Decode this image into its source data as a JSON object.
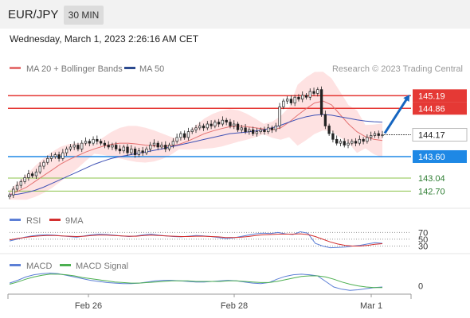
{
  "header": {
    "symbol": "EUR/JPY",
    "timeframe": "30 MIN",
    "datetime": "Wednesday, March 1, 2023 2:26:16 AM CET"
  },
  "legend": {
    "ma20_label": "MA 20 + Bollinger Bands",
    "ma50_label": "MA 50",
    "credit": "Research © 2023 Trading Central"
  },
  "colors": {
    "up": "#2e7d32",
    "down": "#c62828",
    "ma20": "#e57373",
    "ma50": "#5c6bc0",
    "band_fill": "#fdd8d8",
    "resistance": "#e53935",
    "support": "#1e88e5",
    "target": "#8bc34a",
    "arrow": "#1565c0",
    "rsi": "#5c7fd6",
    "nine_ma": "#d32f2f",
    "macd": "#5c7fd6",
    "macd_signal": "#4caf50",
    "last_price_bg": "#ffffff"
  },
  "chart_data": [
    {
      "type": "candlestick",
      "title": "EUR/JPY 30 MIN",
      "x_ticks": [
        "Feb 26",
        "Feb 28",
        "Mar 1"
      ],
      "ylim": [
        142.5,
        145.55
      ],
      "levels": [
        {
          "value": 145.19,
          "label": "145.19",
          "kind": "resistance"
        },
        {
          "value": 144.86,
          "label": "144.86",
          "kind": "resistance"
        },
        {
          "value": 144.17,
          "label": "144.17",
          "kind": "last"
        },
        {
          "value": 143.6,
          "label": "143.60",
          "kind": "support"
        },
        {
          "value": 143.04,
          "label": "143.04",
          "kind": "target"
        },
        {
          "value": 142.7,
          "label": "142.70",
          "kind": "target"
        }
      ],
      "candles_close": [
        142.6,
        142.75,
        142.85,
        142.95,
        143.05,
        143.15,
        143.1,
        143.2,
        143.35,
        143.45,
        143.55,
        143.6,
        143.65,
        143.55,
        143.7,
        143.8,
        143.85,
        143.9,
        143.8,
        143.95,
        144.0,
        143.95,
        144.05,
        144.0,
        143.95,
        143.9,
        143.85,
        143.9,
        143.8,
        143.75,
        143.85,
        143.7,
        143.8,
        143.65,
        143.75,
        143.7,
        143.8,
        143.9,
        143.95,
        143.85,
        143.9,
        143.8,
        143.9,
        144.0,
        144.1,
        144.2,
        144.1,
        144.25,
        144.3,
        144.35,
        144.4,
        144.35,
        144.45,
        144.4,
        144.5,
        144.45,
        144.55,
        144.5,
        144.4,
        144.45,
        144.3,
        144.35,
        144.25,
        144.3,
        144.2,
        144.25,
        144.3,
        144.25,
        144.35,
        144.3,
        144.4,
        144.9,
        145.05,
        145.1,
        145.0,
        145.15,
        145.1,
        145.2,
        145.15,
        145.3,
        145.25,
        145.35,
        144.7,
        144.4,
        144.2,
        144.05,
        143.95,
        144.0,
        143.9,
        143.95,
        144.0,
        143.95,
        144.05,
        144.0,
        144.1,
        144.15,
        144.2,
        144.15,
        144.17
      ],
      "ma20": [
        142.6,
        142.7,
        142.8,
        142.95,
        143.1,
        143.25,
        143.4,
        143.52,
        143.62,
        143.72,
        143.8,
        143.87,
        143.92,
        143.95,
        143.95,
        143.93,
        143.9,
        143.88,
        143.87,
        143.88,
        143.92,
        144.0,
        144.1,
        144.2,
        144.27,
        144.33,
        144.38,
        144.4,
        144.38,
        144.35,
        144.32,
        144.3,
        144.35,
        144.5,
        144.68,
        144.85,
        145.0,
        145.05,
        144.95,
        144.7,
        144.45,
        144.25,
        144.12,
        144.05,
        144.02
      ],
      "ma50": [
        142.6,
        142.62,
        142.66,
        142.72,
        142.8,
        142.9,
        143.0,
        143.1,
        143.2,
        143.3,
        143.4,
        143.48,
        143.55,
        143.6,
        143.64,
        143.68,
        143.72,
        143.76,
        143.8,
        143.85,
        143.9,
        143.95,
        144.0,
        144.05,
        144.1,
        144.15,
        144.2,
        144.22,
        144.24,
        144.27,
        144.3,
        144.35,
        144.42,
        144.5,
        144.58,
        144.64,
        144.68,
        144.7,
        144.68,
        144.64,
        144.6,
        144.56,
        144.53,
        144.51,
        144.5
      ],
      "projection": {
        "from": 144.17,
        "to": 145.19
      }
    },
    {
      "type": "line",
      "title": "RSI",
      "series": [
        {
          "name": "RSI"
        },
        {
          "name": "9MA"
        }
      ],
      "y_ticks": [
        70,
        50,
        30
      ],
      "rsi": [
        45,
        50,
        56,
        60,
        62,
        63,
        62,
        60,
        58,
        56,
        60,
        63,
        65,
        64,
        62,
        60,
        58,
        60,
        63,
        65,
        62,
        60,
        58,
        57,
        59,
        61,
        60,
        58,
        55,
        52,
        54,
        58,
        62,
        66,
        68,
        67,
        70,
        66,
        64,
        72,
        68,
        38,
        30,
        25,
        26,
        27,
        30,
        32,
        36,
        40,
        38
      ],
      "nine_ma": [
        48,
        52,
        55,
        58,
        60,
        61,
        61,
        60,
        59,
        58,
        59,
        61,
        62,
        62,
        61,
        60,
        59,
        59,
        61,
        62,
        61,
        60,
        59,
        58,
        58,
        59,
        59,
        58,
        57,
        55,
        55,
        56,
        58,
        61,
        63,
        64,
        65,
        65,
        65,
        66,
        64,
        58,
        50,
        42,
        36,
        32,
        30,
        30,
        32,
        35,
        37
      ]
    },
    {
      "type": "line",
      "title": "MACD",
      "series": [
        {
          "name": "MACD"
        },
        {
          "name": "MACD Signal"
        }
      ],
      "y_ticks": [
        0
      ],
      "macd": [
        0.05,
        0.1,
        0.16,
        0.2,
        0.22,
        0.23,
        0.22,
        0.19,
        0.16,
        0.13,
        0.1,
        0.08,
        0.06,
        0.05,
        0.04,
        0.04,
        0.05,
        0.07,
        0.09,
        0.1,
        0.1,
        0.09,
        0.08,
        0.07,
        0.07,
        0.08,
        0.09,
        0.1,
        0.09,
        0.07,
        0.05,
        0.04,
        0.06,
        0.12,
        0.17,
        0.2,
        0.21,
        0.2,
        0.18,
        0.08,
        -0.02,
        -0.06,
        -0.08,
        -0.07,
        -0.05,
        -0.03,
        -0.02
      ],
      "signal": [
        0.03,
        0.07,
        0.12,
        0.16,
        0.19,
        0.21,
        0.21,
        0.2,
        0.18,
        0.15,
        0.13,
        0.11,
        0.09,
        0.07,
        0.06,
        0.05,
        0.05,
        0.06,
        0.07,
        0.08,
        0.09,
        0.09,
        0.09,
        0.08,
        0.08,
        0.08,
        0.08,
        0.09,
        0.09,
        0.08,
        0.07,
        0.06,
        0.06,
        0.08,
        0.11,
        0.14,
        0.17,
        0.18,
        0.18,
        0.16,
        0.12,
        0.07,
        0.03,
        0.0,
        -0.02,
        -0.03,
        -0.03
      ]
    }
  ]
}
